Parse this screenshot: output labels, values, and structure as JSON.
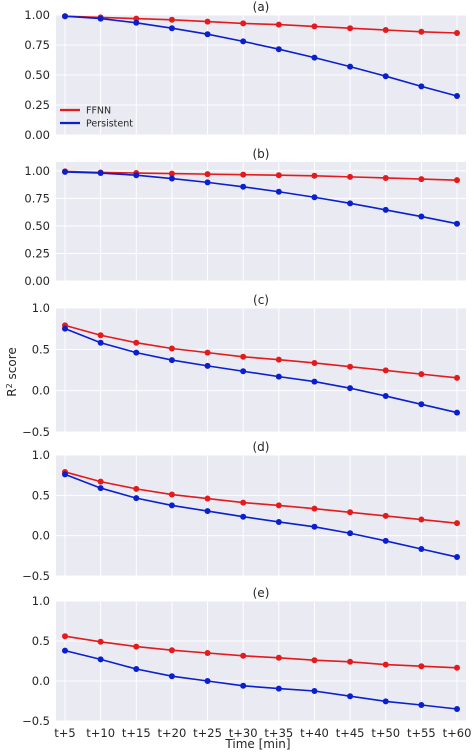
{
  "chart_data": {
    "type": "line",
    "categories": [
      "t+5",
      "t+10",
      "t+15",
      "t+20",
      "t+25",
      "t+30",
      "t+35",
      "t+40",
      "t+45",
      "t+50",
      "t+55",
      "t+60"
    ],
    "xlabel": "Time [min]",
    "ylabel": "R",
    "ylabel_sup": "2",
    "ylabel_rest": "score",
    "grid": true,
    "legend_placement": "left",
    "series_colors": {
      "FFNN": "#e41a1c",
      "Persistent": "#0a1fcf"
    },
    "panels": [
      {
        "title": "(a)",
        "ylim": [
          0,
          1.0
        ],
        "yticks": [
          0.0,
          0.25,
          0.5,
          0.75,
          1.0
        ],
        "ytick_labels": [
          "0.00",
          "0.25",
          "0.50",
          "0.75",
          "1.00"
        ],
        "show_legend": true,
        "series": [
          {
            "name": "FFNN",
            "values": [
              0.99,
              0.98,
              0.97,
              0.96,
              0.945,
              0.93,
              0.92,
              0.905,
              0.89,
              0.875,
              0.86,
              0.85
            ]
          },
          {
            "name": "Persistent",
            "values": [
              0.99,
              0.97,
              0.935,
              0.89,
              0.84,
              0.78,
              0.715,
              0.645,
              0.57,
              0.49,
              0.405,
              0.325
            ]
          }
        ]
      },
      {
        "title": "(b)",
        "ylim": [
          0,
          1.08
        ],
        "yticks": [
          0.0,
          0.25,
          0.5,
          0.75,
          1.0
        ],
        "ytick_labels": [
          "0.00",
          "0.25",
          "0.50",
          "0.75",
          "1.00"
        ],
        "show_legend": false,
        "series": [
          {
            "name": "FFNN",
            "values": [
              0.995,
              0.985,
              0.98,
              0.975,
              0.97,
              0.965,
              0.96,
              0.955,
              0.945,
              0.935,
              0.925,
              0.915
            ]
          },
          {
            "name": "Persistent",
            "values": [
              0.99,
              0.98,
              0.96,
              0.93,
              0.895,
              0.855,
              0.81,
              0.76,
              0.705,
              0.645,
              0.585,
              0.52
            ]
          }
        ]
      },
      {
        "title": "(c)",
        "ylim": [
          -0.5,
          1.0
        ],
        "yticks": [
          -0.5,
          0.0,
          0.5,
          1.0
        ],
        "ytick_labels": [
          "−0.5",
          "0.0",
          "0.5",
          "1.0"
        ],
        "show_legend": false,
        "series": [
          {
            "name": "FFNN",
            "values": [
              0.79,
              0.67,
              0.58,
              0.51,
              0.46,
              0.41,
              0.375,
              0.335,
              0.29,
              0.245,
              0.2,
              0.155
            ]
          },
          {
            "name": "Persistent",
            "values": [
              0.75,
              0.58,
              0.46,
              0.37,
              0.3,
              0.235,
              0.17,
              0.11,
              0.03,
              -0.065,
              -0.165,
              -0.265
            ]
          }
        ]
      },
      {
        "title": "(d)",
        "ylim": [
          -0.5,
          1.0
        ],
        "yticks": [
          -0.5,
          0.0,
          0.5,
          1.0
        ],
        "ytick_labels": [
          "−0.5",
          "0.0",
          "0.5",
          "1.0"
        ],
        "show_legend": false,
        "series": [
          {
            "name": "FFNN",
            "values": [
              0.79,
              0.67,
              0.58,
              0.51,
              0.46,
              0.41,
              0.375,
              0.335,
              0.29,
              0.245,
              0.2,
              0.155
            ]
          },
          {
            "name": "Persistent",
            "values": [
              0.76,
              0.59,
              0.465,
              0.375,
              0.305,
              0.235,
              0.17,
              0.11,
              0.03,
              -0.065,
              -0.165,
              -0.265
            ]
          }
        ]
      },
      {
        "title": "(e)",
        "ylim": [
          -0.5,
          1.0
        ],
        "yticks": [
          -0.5,
          0.0,
          0.5,
          1.0
        ],
        "ytick_labels": [
          "−0.5",
          "0.0",
          "0.5",
          "1.0"
        ],
        "show_legend": false,
        "series": [
          {
            "name": "FFNN",
            "values": [
              0.56,
              0.49,
              0.43,
              0.385,
              0.35,
              0.315,
              0.29,
              0.26,
              0.24,
              0.205,
              0.185,
              0.165
            ]
          },
          {
            "name": "Persistent",
            "values": [
              0.38,
              0.27,
              0.15,
              0.06,
              0.0,
              -0.06,
              -0.095,
              -0.125,
              -0.19,
              -0.255,
              -0.3,
              -0.35
            ]
          }
        ]
      }
    ]
  }
}
